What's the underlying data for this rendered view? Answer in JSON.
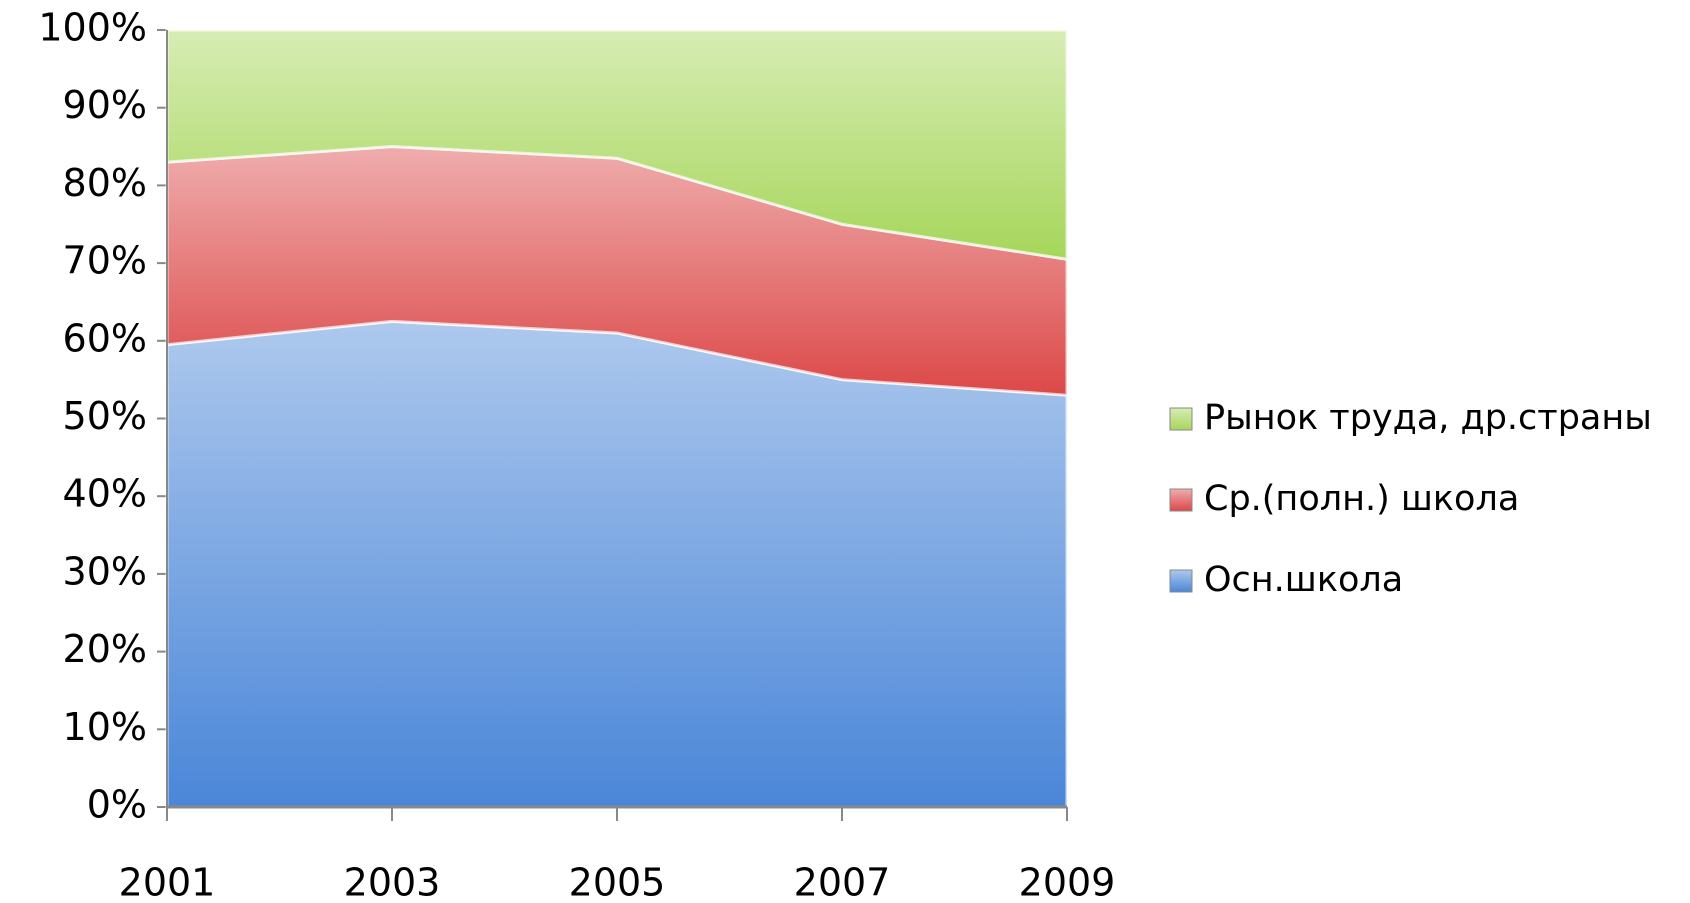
{
  "chart_data": {
    "type": "stacked_area",
    "categories": [
      "2001",
      "2003",
      "2005",
      "2007",
      "2009"
    ],
    "series": [
      {
        "name": "Осн.школа",
        "color": "#4a86d8",
        "values": [
          59.5,
          62.5,
          61,
          55,
          53
        ]
      },
      {
        "name": "Ср.(полн.) школа",
        "color": "#dc4848",
        "values": [
          23.5,
          22.5,
          22.5,
          20,
          17.5
        ]
      },
      {
        "name": "Рынок труда, др.страны",
        "color": "#a6d65a",
        "values": [
          17,
          15,
          16.5,
          25,
          29.5
        ]
      }
    ],
    "ylim": [
      0,
      100
    ],
    "yticks": [
      {
        "value": 0,
        "label": "0%"
      },
      {
        "value": 10,
        "label": "10%"
      },
      {
        "value": 20,
        "label": "20%"
      },
      {
        "value": 30,
        "label": "30%"
      },
      {
        "value": 40,
        "label": "40%"
      },
      {
        "value": 50,
        "label": "50%"
      },
      {
        "value": 60,
        "label": "60%"
      },
      {
        "value": 70,
        "label": "70%"
      },
      {
        "value": 80,
        "label": "80%"
      },
      {
        "value": 90,
        "label": "90%"
      },
      {
        "value": 100,
        "label": "100%"
      }
    ],
    "legend": "right"
  }
}
